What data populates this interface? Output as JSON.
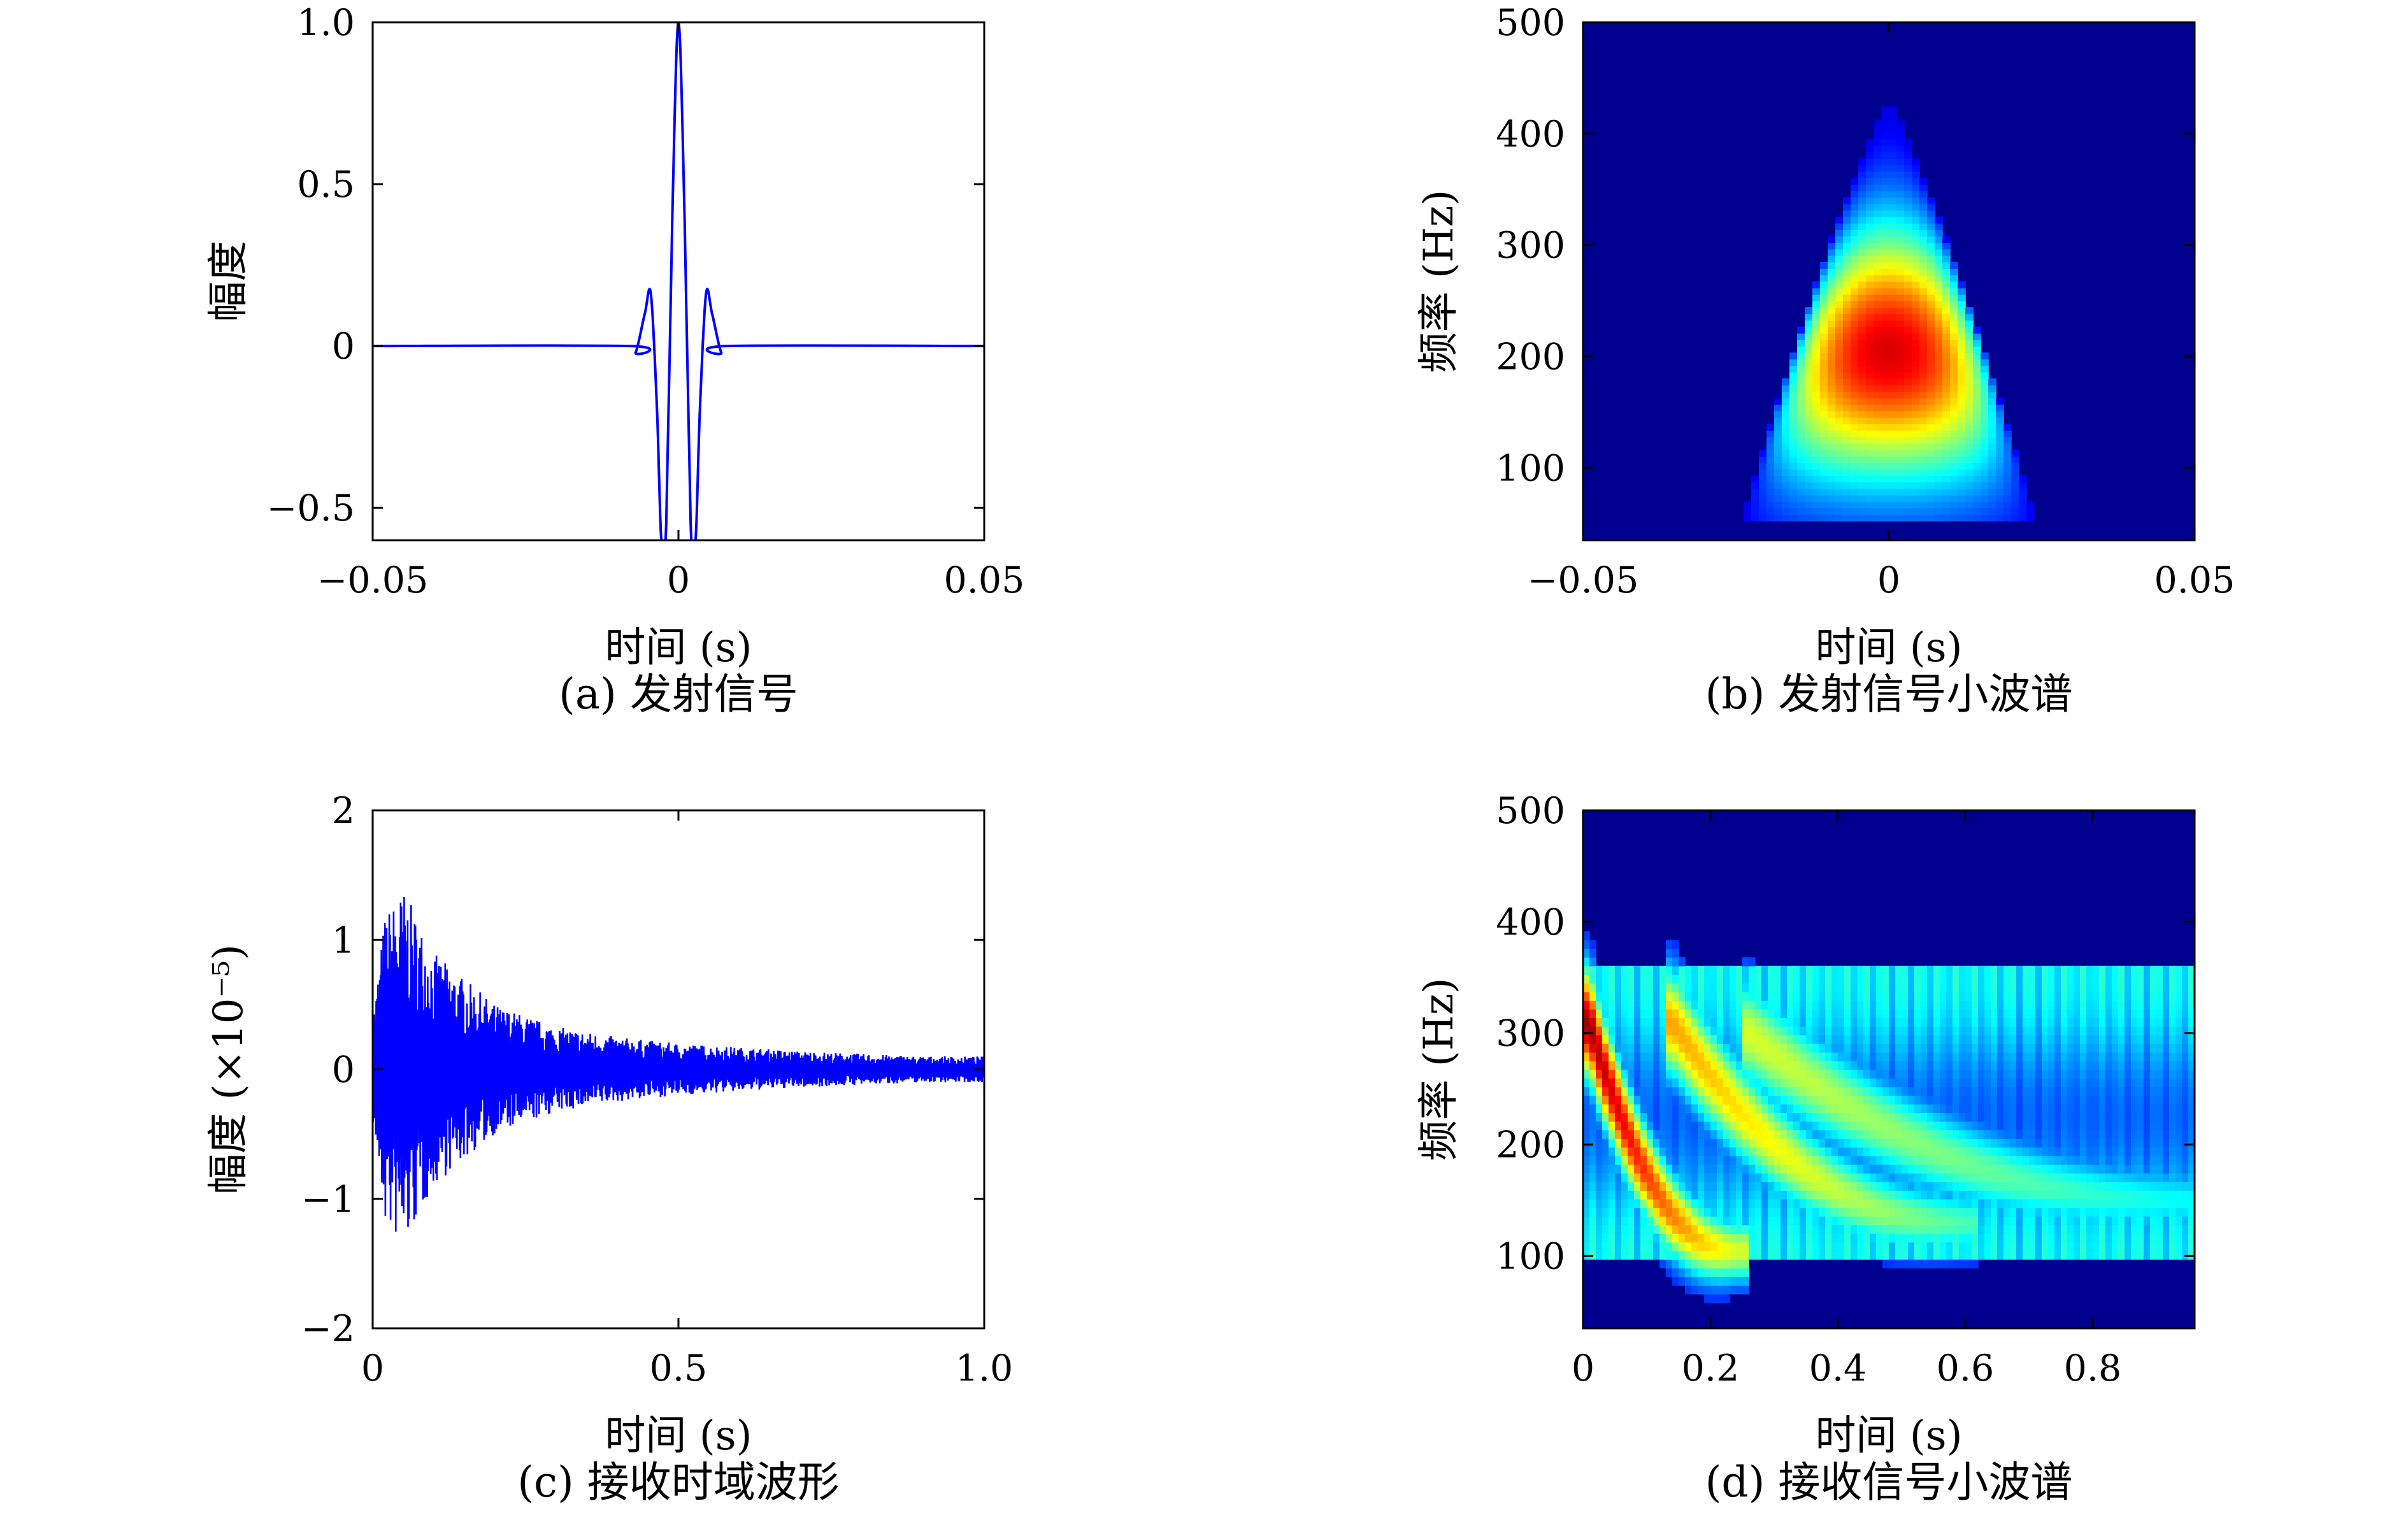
{
  "chart_data": [
    {
      "id": "a",
      "type": "line",
      "caption": "(a) 发射信号",
      "xlabel": "时间 (s)",
      "ylabel": "幅度",
      "xlim": [
        -0.05,
        0.05
      ],
      "ylim": [
        -0.6,
        1.0
      ],
      "xticks": [
        -0.05,
        0,
        0.05
      ],
      "xtick_labels": [
        "−0.05",
        "0",
        "0.05"
      ],
      "yticks": [
        -0.5,
        0,
        0.5,
        1.0
      ],
      "ytick_labels": [
        "−0.5",
        "0",
        "0.5",
        "1.0"
      ],
      "line_color": "#0000ff",
      "series": [
        {
          "x": [
            -0.05,
            -0.008,
            -0.007,
            -0.0055,
            -0.0045,
            -0.0035,
            -0.0028,
            -0.002,
            -0.001,
            0.0,
            0.001,
            0.002,
            0.0028,
            0.0035,
            0.0045,
            0.0055,
            0.007,
            0.008,
            0.05
          ],
          "y": [
            0,
            0,
            -0.02,
            0.1,
            0.16,
            -0.2,
            -0.6,
            -0.55,
            0.4,
            1.0,
            0.4,
            -0.55,
            -0.6,
            -0.2,
            0.16,
            0.1,
            -0.02,
            0,
            0
          ]
        }
      ]
    },
    {
      "id": "b",
      "type": "heatmap",
      "caption": "(b) 发射信号小波谱",
      "xlabel": "时间 (s)",
      "ylabel": "频率 (Hz)",
      "xlim": [
        -0.05,
        0.05
      ],
      "ylim": [
        35,
        500
      ],
      "xticks": [
        -0.05,
        0,
        0.05
      ],
      "xtick_labels": [
        "−0.05",
        "0",
        "0.05"
      ],
      "yticks": [
        100,
        200,
        300,
        400,
        500
      ],
      "ytick_labels": [
        "100",
        "200",
        "300",
        "400",
        "500"
      ],
      "colormap": "jet",
      "background": "#00008f",
      "features": [
        {
          "shape": "cone",
          "center_time": 0,
          "peak_freq": 205,
          "peak_level": 0.83,
          "top_freq": 430,
          "base_freq": 55,
          "base_halfwidth": 0.024
        }
      ]
    },
    {
      "id": "c",
      "type": "line",
      "caption": "(c) 接收时域波形",
      "xlabel": "时间 (s)",
      "ylabel": "幅度 (×10⁻⁵)",
      "xlim": [
        0,
        1.0
      ],
      "ylim": [
        -2,
        2
      ],
      "xticks": [
        0,
        0.5,
        1.0
      ],
      "xtick_labels": [
        "0",
        "0.5",
        "1.0"
      ],
      "yticks": [
        -2,
        -1,
        0,
        1,
        2
      ],
      "ytick_labels": [
        "−2",
        "−1",
        "0",
        "1",
        "2"
      ],
      "line_color": "#0000ff",
      "envelope": {
        "t": [
          0,
          0.02,
          0.05,
          0.1,
          0.2,
          0.3,
          0.4,
          0.5,
          0.6,
          0.7,
          0.8,
          0.9,
          1.0
        ],
        "amplitude": [
          0.4,
          1.2,
          1.4,
          0.9,
          0.5,
          0.33,
          0.25,
          0.2,
          0.17,
          0.14,
          0.12,
          0.1,
          0.1
        ]
      }
    },
    {
      "id": "d",
      "type": "heatmap",
      "caption": "(d) 接收信号小波谱",
      "xlabel": "时间 (s)",
      "ylabel": "频率 (Hz)",
      "xlim": [
        0,
        0.96
      ],
      "ylim": [
        35,
        500
      ],
      "xticks": [
        0,
        0.2,
        0.4,
        0.6,
        0.8
      ],
      "xtick_labels": [
        "0",
        "0.2",
        "0.4",
        "0.6",
        "0.8"
      ],
      "yticks": [
        100,
        200,
        300,
        400,
        500
      ],
      "ytick_labels": [
        "100",
        "200",
        "300",
        "400",
        "500"
      ],
      "colormap": "jet",
      "background": "#00008f",
      "features": [
        {
          "shape": "decay-curve",
          "t0": 0.01,
          "t1": 0.24,
          "f0": 310,
          "f1": 105,
          "peak_level": 1.0
        },
        {
          "shape": "decay-curve",
          "t0": 0.14,
          "t1": 0.6,
          "f0": 310,
          "f1": 130,
          "peak_level": 0.7
        },
        {
          "shape": "decay-curve",
          "t0": 0.26,
          "t1": 0.95,
          "f0": 300,
          "f1": 150,
          "peak_level": 0.55
        },
        {
          "shape": "band",
          "t0": 0.0,
          "t1": 0.96,
          "f_low": 95,
          "f_high": 360,
          "level": 0.35
        }
      ]
    }
  ]
}
